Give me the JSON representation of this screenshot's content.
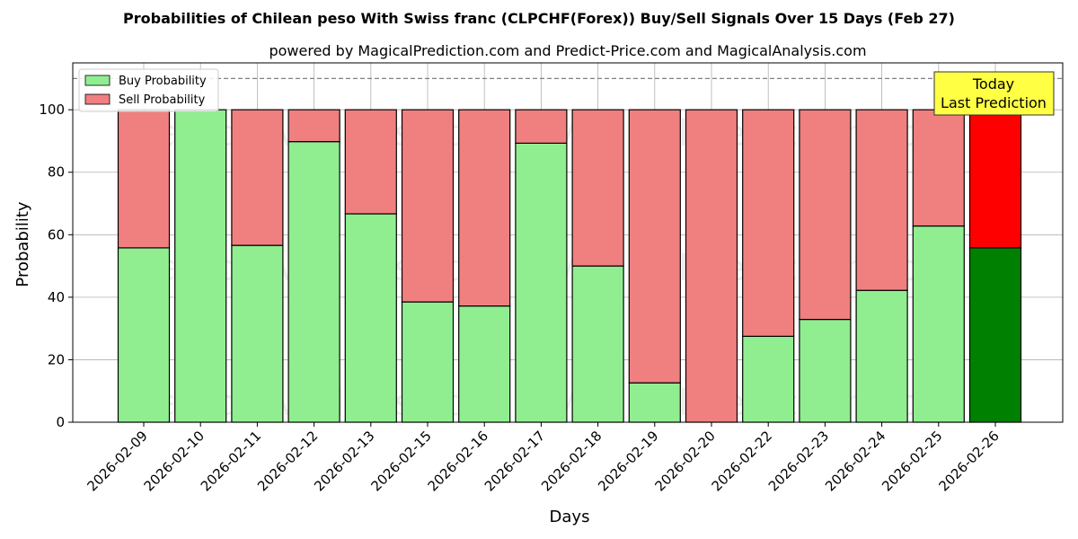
{
  "chart_data": {
    "type": "bar",
    "stacked": true,
    "title": "Probabilities of Chilean peso With Swiss franc (CLPCHF(Forex)) Buy/Sell Signals Over 15 Days (Feb 27)",
    "subtitle": "powered by MagicalPrediction.com and Predict-Price.com and MagicalAnalysis.com",
    "xlabel": "Days",
    "ylabel": "Probability",
    "ylim": [
      0,
      115
    ],
    "yticks": [
      0,
      20,
      40,
      60,
      80,
      100
    ],
    "grid": true,
    "legend_position": "top-left",
    "reference_line": 110,
    "categories": [
      "2026-02-09",
      "2026-02-10",
      "2026-02-11",
      "2026-02-12",
      "2026-02-13",
      "2026-02-15",
      "2026-02-16",
      "2026-02-17",
      "2026-02-18",
      "2026-02-19",
      "2026-02-20",
      "2026-02-22",
      "2026-02-23",
      "2026-02-24",
      "2026-02-25",
      "2026-02-26"
    ],
    "series": [
      {
        "name": "Buy Probability",
        "color": "#90ee90",
        "highlight_color": "#008000",
        "values": [
          55.8,
          100,
          56.6,
          89.8,
          66.7,
          38.5,
          37.2,
          89.3,
          50.0,
          12.6,
          0,
          27.5,
          32.9,
          42.2,
          62.8,
          55.8
        ]
      },
      {
        "name": "Sell Probability",
        "color": "#f08080",
        "highlight_color": "#ff0000",
        "values": [
          44.2,
          0,
          43.4,
          10.2,
          33.3,
          61.5,
          62.8,
          10.7,
          50.0,
          87.4,
          100,
          72.5,
          67.1,
          57.8,
          37.2,
          44.2
        ]
      }
    ],
    "highlight_index": 15,
    "annotation": {
      "line1": "Today",
      "line2": "Last Prediction",
      "bg": "#ffff44"
    },
    "watermarks": [
      "MagicalAnalysis.com",
      "MagicalPrediction.com"
    ]
  }
}
